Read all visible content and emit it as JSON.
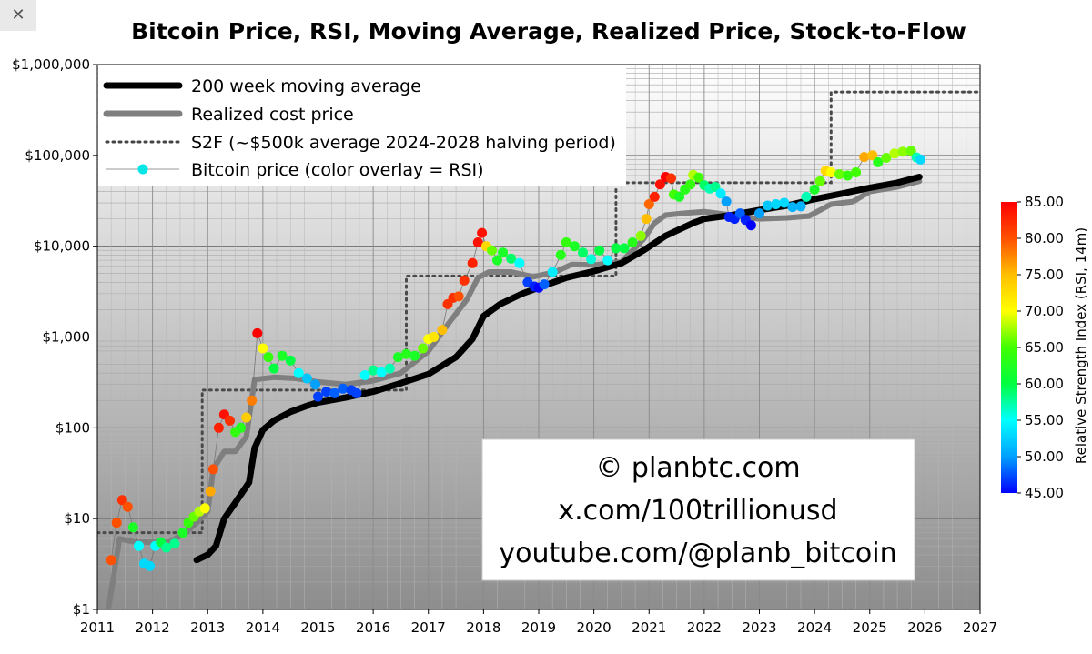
{
  "ui": {
    "close_glyph": "✕",
    "close_icon": "close-icon"
  },
  "chart_data": {
    "type": "scatter",
    "title": "Bitcoin Price, RSI, Moving Average, Realized Price, Stock-to-Flow",
    "xlabel": "",
    "ylabel": "",
    "y_scale": "log",
    "xlim": [
      2011,
      2027
    ],
    "ylim": [
      1,
      1000000
    ],
    "x_ticks": [
      "2011",
      "2012",
      "2013",
      "2014",
      "2015",
      "2016",
      "2017",
      "2018",
      "2019",
      "2020",
      "2021",
      "2022",
      "2023",
      "2024",
      "2025",
      "2026",
      "2027"
    ],
    "y_ticks": [
      {
        "value": 1,
        "label": "$1"
      },
      {
        "value": 10,
        "label": "$10"
      },
      {
        "value": 100,
        "label": "$100"
      },
      {
        "value": 1000,
        "label": "$1,000"
      },
      {
        "value": 10000,
        "label": "$10,000"
      },
      {
        "value": 100000,
        "label": "$100,000"
      },
      {
        "value": 1000000,
        "label": "$1,000,000"
      }
    ],
    "grid": true,
    "legend_position": "top-left",
    "legend": [
      {
        "label": "200 week moving average",
        "style": "thick-black"
      },
      {
        "label": "Realized cost price",
        "style": "thick-gray"
      },
      {
        "label": "S2F (~$500k average 2024-2028 halving period)",
        "style": "dotted"
      },
      {
        "label": "Bitcoin price (color overlay = RSI)",
        "style": "marker"
      }
    ],
    "colorbar": {
      "label": "Relative Strength Index (RSI, 14m)",
      "min": 45,
      "max": 85,
      "ticks": [
        "85.00",
        "80.00",
        "75.00",
        "70.00",
        "65.00",
        "60.00",
        "55.00",
        "50.00",
        "45.00"
      ]
    },
    "credits": [
      "© planbtc.com",
      "x.com/100trillionusd",
      "youtube.com/@planb_bitcoin"
    ],
    "colors": {
      "ma200": "#000000",
      "realized": "#7f7f7f",
      "s2f": "#555555",
      "background_top": "#ffffff",
      "background_bottom": "#8c8c8c"
    },
    "series": [
      {
        "name": "200 week moving average",
        "points": [
          [
            2012.8,
            3.5
          ],
          [
            2013.0,
            4
          ],
          [
            2013.15,
            5
          ],
          [
            2013.3,
            10
          ],
          [
            2013.5,
            15
          ],
          [
            2013.75,
            25
          ],
          [
            2013.85,
            60
          ],
          [
            2014.0,
            95
          ],
          [
            2014.2,
            120
          ],
          [
            2014.5,
            150
          ],
          [
            2014.8,
            175
          ],
          [
            2015.0,
            190
          ],
          [
            2015.5,
            215
          ],
          [
            2016.0,
            250
          ],
          [
            2016.5,
            310
          ],
          [
            2017.0,
            390
          ],
          [
            2017.5,
            600
          ],
          [
            2017.8,
            950
          ],
          [
            2018.0,
            1700
          ],
          [
            2018.3,
            2300
          ],
          [
            2018.7,
            3000
          ],
          [
            2019.0,
            3500
          ],
          [
            2019.5,
            4500
          ],
          [
            2020.0,
            5300
          ],
          [
            2020.5,
            6500
          ],
          [
            2020.9,
            9000
          ],
          [
            2021.3,
            13000
          ],
          [
            2021.8,
            18000
          ],
          [
            2022.0,
            20000
          ],
          [
            2022.5,
            22000
          ],
          [
            2023.0,
            25000
          ],
          [
            2023.5,
            28000
          ],
          [
            2024.0,
            33000
          ],
          [
            2024.5,
            38000
          ],
          [
            2025.0,
            44000
          ],
          [
            2025.5,
            50000
          ],
          [
            2025.9,
            58000
          ]
        ]
      },
      {
        "name": "Realized cost price",
        "points": [
          [
            2011.2,
            1
          ],
          [
            2011.4,
            6
          ],
          [
            2011.7,
            5.5
          ],
          [
            2012.0,
            5.5
          ],
          [
            2012.3,
            5.5
          ],
          [
            2012.6,
            7
          ],
          [
            2012.8,
            9
          ],
          [
            2013.0,
            12
          ],
          [
            2013.1,
            35
          ],
          [
            2013.3,
            55
          ],
          [
            2013.5,
            55
          ],
          [
            2013.7,
            80
          ],
          [
            2013.85,
            340
          ],
          [
            2014.2,
            360
          ],
          [
            2014.6,
            350
          ],
          [
            2015.0,
            320
          ],
          [
            2015.5,
            300
          ],
          [
            2016.0,
            330
          ],
          [
            2016.5,
            400
          ],
          [
            2017.0,
            700
          ],
          [
            2017.4,
            1500
          ],
          [
            2017.7,
            2600
          ],
          [
            2017.9,
            4500
          ],
          [
            2018.1,
            5200
          ],
          [
            2018.5,
            5200
          ],
          [
            2018.9,
            4600
          ],
          [
            2019.3,
            5200
          ],
          [
            2019.6,
            6300
          ],
          [
            2020.0,
            6200
          ],
          [
            2020.5,
            6700
          ],
          [
            2020.9,
            12000
          ],
          [
            2021.1,
            18000
          ],
          [
            2021.3,
            22000
          ],
          [
            2021.6,
            23000
          ],
          [
            2022.0,
            24000
          ],
          [
            2022.5,
            22000
          ],
          [
            2023.0,
            20000
          ],
          [
            2023.5,
            20500
          ],
          [
            2023.9,
            21500
          ],
          [
            2024.3,
            29000
          ],
          [
            2024.7,
            31000
          ],
          [
            2025.0,
            40000
          ],
          [
            2025.5,
            45000
          ],
          [
            2025.9,
            52000
          ]
        ]
      },
      {
        "name": "S2F (~$500k average 2024-2028 halving period)",
        "points": [
          [
            2011.0,
            7
          ],
          [
            2012.9,
            7
          ],
          [
            2012.9,
            260
          ],
          [
            2016.6,
            260
          ],
          [
            2016.6,
            4700
          ],
          [
            2020.4,
            4700
          ],
          [
            2020.4,
            50000
          ],
          [
            2024.3,
            50000
          ],
          [
            2024.3,
            500000
          ],
          [
            2026.95,
            500000
          ]
        ]
      },
      {
        "name": "Bitcoin price (color overlay = RSI)",
        "points": [
          [
            2011.25,
            3.5,
            80
          ],
          [
            2011.35,
            9,
            80
          ],
          [
            2011.45,
            16,
            82
          ],
          [
            2011.55,
            13.5,
            80
          ],
          [
            2011.65,
            8,
            62
          ],
          [
            2011.75,
            5,
            55
          ],
          [
            2011.85,
            3.2,
            53
          ],
          [
            2011.95,
            3,
            53
          ],
          [
            2012.05,
            5,
            55
          ],
          [
            2012.15,
            5.5,
            60
          ],
          [
            2012.25,
            4.8,
            58
          ],
          [
            2012.4,
            5.3,
            58
          ],
          [
            2012.55,
            7,
            62
          ],
          [
            2012.65,
            9,
            64
          ],
          [
            2012.75,
            10.5,
            66
          ],
          [
            2012.85,
            12,
            68
          ],
          [
            2012.95,
            13,
            70
          ],
          [
            2013.05,
            20,
            76
          ],
          [
            2013.1,
            35,
            80
          ],
          [
            2013.2,
            100,
            83
          ],
          [
            2013.3,
            140,
            84
          ],
          [
            2013.4,
            120,
            82
          ],
          [
            2013.5,
            90,
            64
          ],
          [
            2013.6,
            100,
            63
          ],
          [
            2013.7,
            130,
            74
          ],
          [
            2013.8,
            200,
            78
          ],
          [
            2013.9,
            1100,
            85
          ],
          [
            2014.0,
            750,
            70
          ],
          [
            2014.1,
            600,
            64
          ],
          [
            2014.2,
            450,
            60
          ],
          [
            2014.35,
            620,
            62
          ],
          [
            2014.5,
            550,
            60
          ],
          [
            2014.65,
            400,
            55
          ],
          [
            2014.8,
            350,
            52
          ],
          [
            2014.95,
            300,
            50
          ],
          [
            2015.0,
            220,
            47
          ],
          [
            2015.15,
            250,
            47
          ],
          [
            2015.3,
            240,
            48
          ],
          [
            2015.45,
            270,
            48
          ],
          [
            2015.6,
            260,
            47
          ],
          [
            2015.7,
            240,
            47
          ],
          [
            2015.85,
            380,
            55
          ],
          [
            2016.0,
            430,
            58
          ],
          [
            2016.15,
            410,
            55
          ],
          [
            2016.3,
            450,
            57
          ],
          [
            2016.45,
            600,
            62
          ],
          [
            2016.6,
            650,
            63
          ],
          [
            2016.75,
            620,
            62
          ],
          [
            2016.9,
            750,
            66
          ],
          [
            2017.0,
            950,
            70
          ],
          [
            2017.1,
            1000,
            72
          ],
          [
            2017.25,
            1200,
            75
          ],
          [
            2017.35,
            2300,
            82
          ],
          [
            2017.45,
            2700,
            82
          ],
          [
            2017.55,
            2800,
            80
          ],
          [
            2017.65,
            4200,
            82
          ],
          [
            2017.8,
            6500,
            83
          ],
          [
            2017.9,
            11000,
            84
          ],
          [
            2017.97,
            14000,
            84
          ],
          [
            2018.05,
            10000,
            73
          ],
          [
            2018.15,
            9000,
            66
          ],
          [
            2018.25,
            7000,
            62
          ],
          [
            2018.35,
            8500,
            62
          ],
          [
            2018.5,
            7300,
            59
          ],
          [
            2018.65,
            6500,
            55
          ],
          [
            2018.8,
            4000,
            47
          ],
          [
            2018.92,
            3600,
            46
          ],
          [
            2019.0,
            3500,
            45
          ],
          [
            2019.1,
            3800,
            48
          ],
          [
            2019.25,
            5200,
            54
          ],
          [
            2019.4,
            8000,
            63
          ],
          [
            2019.5,
            11000,
            64
          ],
          [
            2019.65,
            10000,
            62
          ],
          [
            2019.8,
            8500,
            59
          ],
          [
            2019.95,
            7200,
            56
          ],
          [
            2020.1,
            9000,
            60
          ],
          [
            2020.25,
            7000,
            55
          ],
          [
            2020.4,
            9500,
            60
          ],
          [
            2020.55,
            9500,
            60
          ],
          [
            2020.7,
            11000,
            63
          ],
          [
            2020.85,
            13000,
            67
          ],
          [
            2020.95,
            20000,
            75
          ],
          [
            2021.0,
            29000,
            79
          ],
          [
            2021.1,
            35000,
            83
          ],
          [
            2021.2,
            48000,
            84
          ],
          [
            2021.3,
            58000,
            85
          ],
          [
            2021.4,
            56000,
            82
          ],
          [
            2021.45,
            37000,
            65
          ],
          [
            2021.55,
            35000,
            62
          ],
          [
            2021.65,
            42000,
            63
          ],
          [
            2021.75,
            48000,
            64
          ],
          [
            2021.8,
            61000,
            68
          ],
          [
            2021.9,
            57000,
            65
          ],
          [
            2022.0,
            47000,
            59
          ],
          [
            2022.1,
            43000,
            57
          ],
          [
            2022.2,
            45000,
            58
          ],
          [
            2022.3,
            38000,
            54
          ],
          [
            2022.4,
            31000,
            50
          ],
          [
            2022.45,
            21000,
            46
          ],
          [
            2022.55,
            20000,
            46
          ],
          [
            2022.65,
            23000,
            48
          ],
          [
            2022.75,
            19500,
            46
          ],
          [
            2022.85,
            17000,
            45
          ],
          [
            2023.0,
            23000,
            50
          ],
          [
            2023.15,
            28000,
            52
          ],
          [
            2023.3,
            29000,
            53
          ],
          [
            2023.45,
            30000,
            53
          ],
          [
            2023.6,
            27000,
            51
          ],
          [
            2023.75,
            27500,
            51
          ],
          [
            2023.85,
            35000,
            57
          ],
          [
            2024.0,
            42000,
            62
          ],
          [
            2024.1,
            52000,
            66
          ],
          [
            2024.2,
            68000,
            73
          ],
          [
            2024.3,
            65000,
            70
          ],
          [
            2024.45,
            62000,
            66
          ],
          [
            2024.6,
            60000,
            64
          ],
          [
            2024.75,
            65000,
            65
          ],
          [
            2024.9,
            96000,
            76
          ],
          [
            2025.05,
            100000,
            75
          ],
          [
            2025.15,
            84000,
            63
          ],
          [
            2025.3,
            94000,
            66
          ],
          [
            2025.45,
            105000,
            68
          ],
          [
            2025.6,
            110000,
            67
          ],
          [
            2025.75,
            112000,
            66
          ],
          [
            2025.85,
            95000,
            57
          ],
          [
            2025.92,
            90000,
            53
          ]
        ]
      }
    ]
  }
}
